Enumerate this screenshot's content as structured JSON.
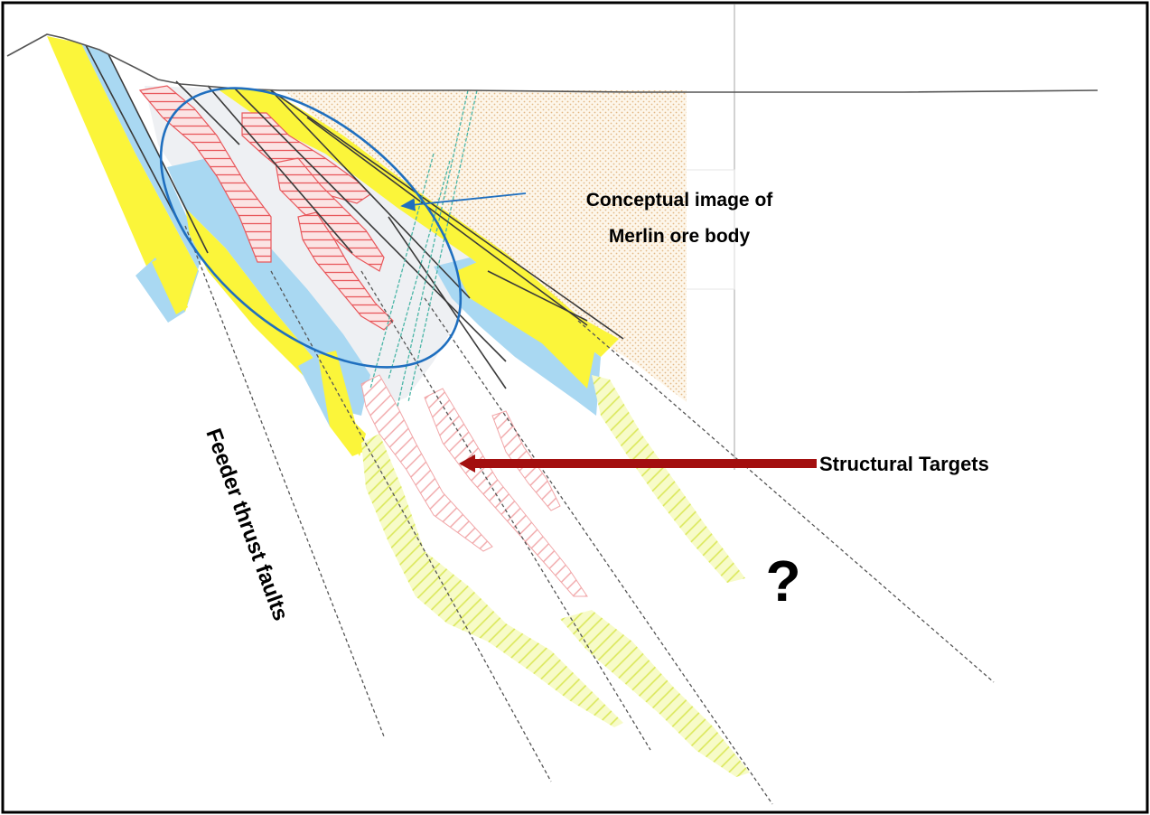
{
  "labels": {
    "ore_body_line1": "Conceptual image of",
    "ore_body_line2": "Merlin ore body",
    "structural_targets": "Structural Targets",
    "feeder_faults": "Feeder thrust faults",
    "question_mark": "?"
  },
  "colors": {
    "yellow_unit": "#fbf53a",
    "blue_unit": "#a9d8f2",
    "ore_hatch": "#e8585c",
    "target_hatch": "#f1a6a8",
    "yellow_hatch": "#dbe85a",
    "ellipse": "#1f6fbf",
    "arrow_red": "#a30f0f",
    "stipple": "#e9c59a",
    "border": "#000000"
  }
}
